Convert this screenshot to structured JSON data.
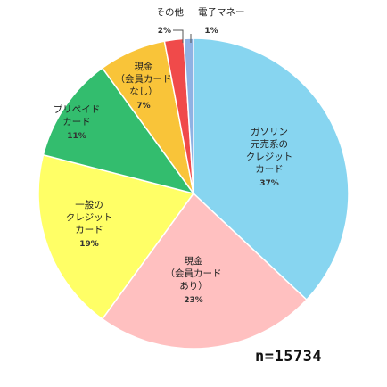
{
  "chart_data": {
    "type": "pie",
    "title": "",
    "slices": [
      {
        "lines": [
          "ガソリン",
          "元売系の",
          "クレジット",
          "カード"
        ],
        "pct_label": "37%",
        "value": 37,
        "color": "#87d5f0"
      },
      {
        "lines": [
          "現金",
          "（会員カード",
          "あり）"
        ],
        "pct_label": "23%",
        "value": 23,
        "color": "#ffc0c0"
      },
      {
        "lines": [
          "一般の",
          "クレジット",
          "カード"
        ],
        "pct_label": "19%",
        "value": 19,
        "color": "#ffff66"
      },
      {
        "lines": [
          "プリペイド",
          "カード"
        ],
        "pct_label": "11%",
        "value": 11,
        "color": "#33bd6e"
      },
      {
        "lines": [
          "現金",
          "（会員カード",
          "なし）"
        ],
        "pct_label": "7%",
        "value": 7,
        "color": "#f9c439"
      },
      {
        "lines": [
          "その他"
        ],
        "pct_label": "2%",
        "value": 2,
        "color": "#f04a4a"
      },
      {
        "lines": [
          "電子マネー"
        ],
        "pct_label": "1%",
        "value": 1,
        "color": "#8fb2e3"
      }
    ],
    "sample_size": "n=15734"
  }
}
